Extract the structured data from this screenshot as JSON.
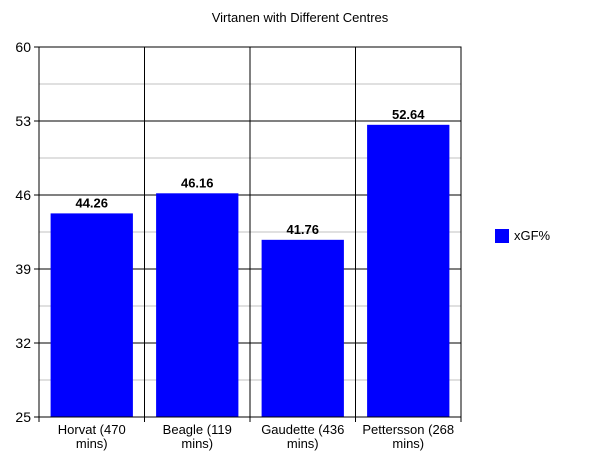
{
  "chart_data": {
    "type": "bar",
    "title": "Virtanen with Different Centres",
    "categories": [
      [
        "Horvat (470",
        "mins)"
      ],
      [
        "Beagle (119",
        "mins)"
      ],
      [
        "Gaudette (436",
        "mins)"
      ],
      [
        "Pettersson (268",
        "mins)"
      ]
    ],
    "series": [
      {
        "name": "xGF%",
        "values": [
          44.26,
          46.16,
          41.76,
          52.64
        ],
        "labels": [
          "44.26",
          "46.16",
          "41.76",
          "52.64"
        ]
      }
    ],
    "ylim": [
      25,
      60
    ],
    "yticks": [
      "25",
      "32",
      "39",
      "46",
      "53",
      "60"
    ],
    "yminor": [
      28.5,
      35.5,
      42.5,
      49.5,
      56.5
    ],
    "grid": true,
    "legend": "right",
    "colors": {
      "bar": "#0000ff",
      "major_grid": "#000000",
      "minor_grid": "#c0c0c0"
    }
  }
}
